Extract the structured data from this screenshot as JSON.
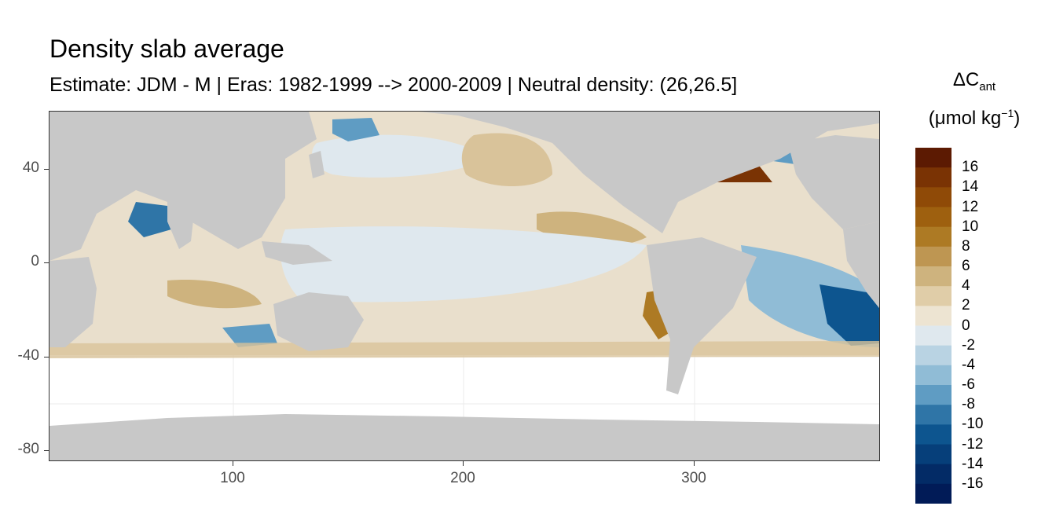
{
  "title": "Density slab average",
  "subtitle": "Estimate: JDM - M | Eras: 1982-1999 --> 2000-2009 | Neutral density: (26,26.5]",
  "legend": {
    "title_main": "ΔC",
    "title_sub": "ant",
    "unit_prefix": "(μmol kg",
    "unit_sup": "−1",
    "unit_suffix": ")",
    "labels": [
      "16",
      "14",
      "12",
      "10",
      "8",
      "6",
      "4",
      "2",
      "0",
      "-2",
      "-4",
      "-6",
      "-8",
      "-10",
      "-12",
      "-14",
      "-16"
    ],
    "colors": [
      "#5c1a02",
      "#7a3304",
      "#8f4a07",
      "#9e600f",
      "#ad7a24",
      "#be9652",
      "#ceb37e",
      "#e0cda8",
      "#ede4d2",
      "#dfe8ee",
      "#b9d3e3",
      "#90bcd6",
      "#5f9cc3",
      "#2f75a7",
      "#0d558f",
      "#063f7a",
      "#032b66",
      "#011b57"
    ]
  },
  "axes": {
    "x_ticks": [
      "100",
      "200",
      "300"
    ],
    "y_ticks": [
      "40",
      "0",
      "-40",
      "-80"
    ]
  },
  "map_colors": {
    "land": "#c8c8c8",
    "no_data": "#ffffff",
    "grid": "#ebebeb",
    "frame": "#333333"
  },
  "chart_data": {
    "type": "heatmap",
    "title": "Density slab average",
    "subtitle": "Estimate: JDM - M | Eras: 1982-1999 --> 2000-2009 | Neutral density: (26,26.5]",
    "xlabel": "",
    "ylabel": "",
    "xlim": [
      20,
      380
    ],
    "ylim": [
      -85,
      65
    ],
    "x_ticks": [
      100,
      200,
      300
    ],
    "y_ticks": [
      40,
      0,
      -40,
      -80
    ],
    "colorbar_title": "ΔC_ant (μmol kg^-1)",
    "colorbar_breaks": [
      16,
      14,
      12,
      10,
      8,
      6,
      4,
      2,
      0,
      -2,
      -4,
      -6,
      -8,
      -10,
      -12,
      -14,
      -16
    ],
    "colorbar_range": [
      -18,
      18
    ]
  }
}
